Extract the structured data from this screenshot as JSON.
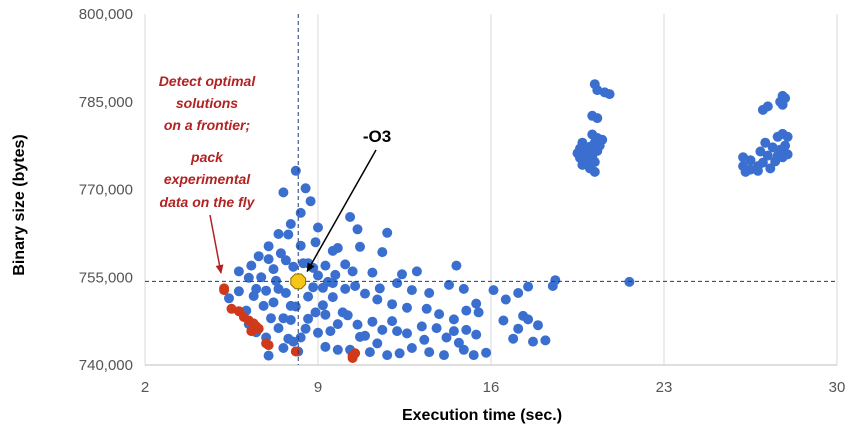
{
  "chart_data": {
    "type": "scatter",
    "xlabel": "Execution time (sec.)",
    "ylabel": "Binary size (bytes)",
    "xlim": [
      2,
      30
    ],
    "ylim": [
      740000,
      800000
    ],
    "x_ticks": [
      2,
      9,
      16,
      23,
      30
    ],
    "y_ticks": [
      740000,
      755000,
      770000,
      785000,
      800000
    ],
    "x_tick_labels": [
      "2",
      "9",
      "16",
      "23",
      "30"
    ],
    "y_tick_labels": [
      "740,000",
      "755,000",
      "770,000",
      "785,000",
      "800,000"
    ],
    "grid": "vertical",
    "colors": {
      "points": "#3a6fd0",
      "frontier": "#d03a1a",
      "highlight": "#f5c518",
      "reference_lines": "#1f3b73",
      "annotation_red": "#b22222",
      "annotation_black": "#000000",
      "grid": "#d9d9d9"
    },
    "reference": {
      "x": 8.2,
      "y": 754300,
      "style": "dashed"
    },
    "annotations": {
      "frontier_text": [
        "Detect optimal",
        "solutions",
        "on a frontier;"
      ],
      "pack_text": [
        "pack",
        "experimental",
        "data on the fly"
      ],
      "o3_label": "-O3"
    },
    "series": [
      {
        "role": "explored",
        "points": [
          [
            8.1,
            773.2
          ],
          [
            7.6,
            769.5
          ],
          [
            8.5,
            770.2
          ],
          [
            8.7,
            768.0
          ],
          [
            9.0,
            763.5
          ],
          [
            8.9,
            761.0
          ],
          [
            10.3,
            765.3
          ],
          [
            10.6,
            763.2
          ],
          [
            11.8,
            762.6
          ],
          [
            10.7,
            760.2
          ],
          [
            9.8,
            760.0
          ],
          [
            10.1,
            757.2
          ],
          [
            9.3,
            757.0
          ],
          [
            9.6,
            759.5
          ],
          [
            11.6,
            759.3
          ],
          [
            14.6,
            757.0
          ],
          [
            13.0,
            756.0
          ],
          [
            12.4,
            755.5
          ],
          [
            11.2,
            755.8
          ],
          [
            10.4,
            756.0
          ],
          [
            9.7,
            755.4
          ],
          [
            10.5,
            753.5
          ],
          [
            11.5,
            753.1
          ],
          [
            12.2,
            754.0
          ],
          [
            12.8,
            752.8
          ],
          [
            13.5,
            752.3
          ],
          [
            14.3,
            753.7
          ],
          [
            14.9,
            753.0
          ],
          [
            15.4,
            750.5
          ],
          [
            16.1,
            752.8
          ],
          [
            16.6,
            751.2
          ],
          [
            17.1,
            752.3
          ],
          [
            17.5,
            753.4
          ],
          [
            18.5,
            753.5
          ],
          [
            18.6,
            754.5
          ],
          [
            21.6,
            754.2
          ],
          [
            15.0,
            749.3
          ],
          [
            15.5,
            749.0
          ],
          [
            16.5,
            747.6
          ],
          [
            17.3,
            748.4
          ],
          [
            17.1,
            746.2
          ],
          [
            17.9,
            746.8
          ],
          [
            16.9,
            744.5
          ],
          [
            17.7,
            744.0
          ],
          [
            18.2,
            744.2
          ],
          [
            17.5,
            747.8
          ],
          [
            14.5,
            745.8
          ],
          [
            15.0,
            746.0
          ],
          [
            15.4,
            745.2
          ],
          [
            14.7,
            743.8
          ],
          [
            14.2,
            744.7
          ],
          [
            13.2,
            746.6
          ],
          [
            12.6,
            745.4
          ],
          [
            13.8,
            746.3
          ],
          [
            12.0,
            747.5
          ],
          [
            11.6,
            746.0
          ],
          [
            11.2,
            747.4
          ],
          [
            10.6,
            746.9
          ],
          [
            10.2,
            748.5
          ],
          [
            9.8,
            747.0
          ],
          [
            9.3,
            748.6
          ],
          [
            10.7,
            744.8
          ],
          [
            11.1,
            742.2
          ],
          [
            11.8,
            741.7
          ],
          [
            12.3,
            742.0
          ],
          [
            10.3,
            742.6
          ],
          [
            9.8,
            742.6
          ],
          [
            9.3,
            743.1
          ],
          [
            14.9,
            742.6
          ],
          [
            15.8,
            742.1
          ],
          [
            15.3,
            741.7
          ],
          [
            14.1,
            741.7
          ],
          [
            13.5,
            742.2
          ],
          [
            12.8,
            742.9
          ],
          [
            11.4,
            743.7
          ],
          [
            10.9,
            745.0
          ],
          [
            12.2,
            745.8
          ],
          [
            13.3,
            744.3
          ],
          [
            14.5,
            747.8
          ],
          [
            13.9,
            748.7
          ],
          [
            13.4,
            749.6
          ],
          [
            12.6,
            749.8
          ],
          [
            12.0,
            750.4
          ],
          [
            11.4,
            751.2
          ],
          [
            10.9,
            752.2
          ],
          [
            10.1,
            753.0
          ],
          [
            9.4,
            754.2
          ],
          [
            9.0,
            755.3
          ],
          [
            8.8,
            756.6
          ],
          [
            8.6,
            757.4
          ],
          [
            9.2,
            753.2
          ],
          [
            9.6,
            751.6
          ],
          [
            9.2,
            750.2
          ],
          [
            8.9,
            749.0
          ],
          [
            8.6,
            747.9
          ],
          [
            8.5,
            746.2
          ],
          [
            9.0,
            745.5
          ],
          [
            8.3,
            744.7
          ],
          [
            9.5,
            745.8
          ],
          [
            6.3,
            757.0
          ],
          [
            6.6,
            758.6
          ],
          [
            7.0,
            760.3
          ],
          [
            7.4,
            762.4
          ],
          [
            7.9,
            764.1
          ],
          [
            8.3,
            766.0
          ],
          [
            6.5,
            753.0
          ],
          [
            5.4,
            751.4
          ],
          [
            5.8,
            752.6
          ],
          [
            6.1,
            749.3
          ],
          [
            6.2,
            747.0
          ],
          [
            6.5,
            745.6
          ],
          [
            6.9,
            744.7
          ],
          [
            6.2,
            754.9
          ],
          [
            5.8,
            756.0
          ],
          [
            7.2,
            756.4
          ],
          [
            7.5,
            759.1
          ],
          [
            7.8,
            762.3
          ],
          [
            8.3,
            760.4
          ],
          [
            8.4,
            757.4
          ],
          [
            7.7,
            757.9
          ],
          [
            7.3,
            754.4
          ],
          [
            6.9,
            752.7
          ],
          [
            6.8,
            750.1
          ],
          [
            7.1,
            748.0
          ],
          [
            7.4,
            746.3
          ],
          [
            7.8,
            744.5
          ],
          [
            7.6,
            742.9
          ],
          [
            7.0,
            741.6
          ],
          [
            8.2,
            742.3
          ],
          [
            8.0,
            744.0
          ],
          [
            7.6,
            748.0
          ],
          [
            8.1,
            750.0
          ],
          [
            7.7,
            752.3
          ],
          [
            8.2,
            754.6
          ],
          [
            8.0,
            756.8
          ],
          [
            7.2,
            750.7
          ],
          [
            7.9,
            750.1
          ],
          [
            6.7,
            755.0
          ],
          [
            7.0,
            758.1
          ],
          [
            7.4,
            753.0
          ],
          [
            7.9,
            747.7
          ],
          [
            6.4,
            751.8
          ],
          [
            8.6,
            751.7
          ],
          [
            8.8,
            753.3
          ],
          [
            9.6,
            754.0
          ],
          [
            10.0,
            749.0
          ],
          [
            20.2,
            788.0
          ],
          [
            20.3,
            787.0
          ],
          [
            20.6,
            786.6
          ],
          [
            20.8,
            786.3
          ],
          [
            20.1,
            782.6
          ],
          [
            20.3,
            782.2
          ],
          [
            20.1,
            779.4
          ],
          [
            20.3,
            778.8
          ],
          [
            20.5,
            778.5
          ],
          [
            20.2,
            778.0
          ],
          [
            19.7,
            778.0
          ],
          [
            19.6,
            777.0
          ],
          [
            19.8,
            776.5
          ],
          [
            20.1,
            776.3
          ],
          [
            20.3,
            776.6
          ],
          [
            19.6,
            775.4
          ],
          [
            19.9,
            775.0
          ],
          [
            20.2,
            774.7
          ],
          [
            19.7,
            774.2
          ],
          [
            20.0,
            773.6
          ],
          [
            20.2,
            773.0
          ],
          [
            19.5,
            776.2
          ],
          [
            20.4,
            777.5
          ],
          [
            20.0,
            777.3
          ],
          [
            19.9,
            776.0
          ],
          [
            20.1,
            775.5
          ],
          [
            27.8,
            786.0
          ],
          [
            27.7,
            785.0
          ],
          [
            27.8,
            784.5
          ],
          [
            27.9,
            785.6
          ],
          [
            27.2,
            784.2
          ],
          [
            27.0,
            783.6
          ],
          [
            27.1,
            778.0
          ],
          [
            27.6,
            779.0
          ],
          [
            27.8,
            779.5
          ],
          [
            28.0,
            779.0
          ],
          [
            27.4,
            777.2
          ],
          [
            27.7,
            776.8
          ],
          [
            28.0,
            776.0
          ],
          [
            27.6,
            775.8
          ],
          [
            26.9,
            776.5
          ],
          [
            27.2,
            775.8
          ],
          [
            27.5,
            774.8
          ],
          [
            27.0,
            774.6
          ],
          [
            27.3,
            773.6
          ],
          [
            26.8,
            774.0
          ],
          [
            26.2,
            775.5
          ],
          [
            26.5,
            775.0
          ],
          [
            26.2,
            774.0
          ],
          [
            26.5,
            773.4
          ],
          [
            26.3,
            773.0
          ],
          [
            26.8,
            773.2
          ],
          [
            27.8,
            775.5
          ],
          [
            27.9,
            777.5
          ]
        ]
      },
      {
        "role": "frontier",
        "points": [
          [
            5.2,
            752.8
          ],
          [
            5.2,
            753.1
          ],
          [
            5.5,
            749.6
          ],
          [
            5.8,
            749.2
          ],
          [
            6.0,
            748.2
          ],
          [
            6.2,
            747.6
          ],
          [
            6.4,
            747.1
          ],
          [
            6.5,
            746.6
          ],
          [
            6.6,
            746.2
          ],
          [
            6.3,
            745.8
          ],
          [
            6.9,
            743.7
          ],
          [
            7.0,
            743.4
          ],
          [
            8.1,
            742.3
          ],
          [
            10.4,
            741.6
          ],
          [
            10.4,
            741.2
          ],
          [
            10.5,
            742.0
          ]
        ]
      }
    ]
  }
}
